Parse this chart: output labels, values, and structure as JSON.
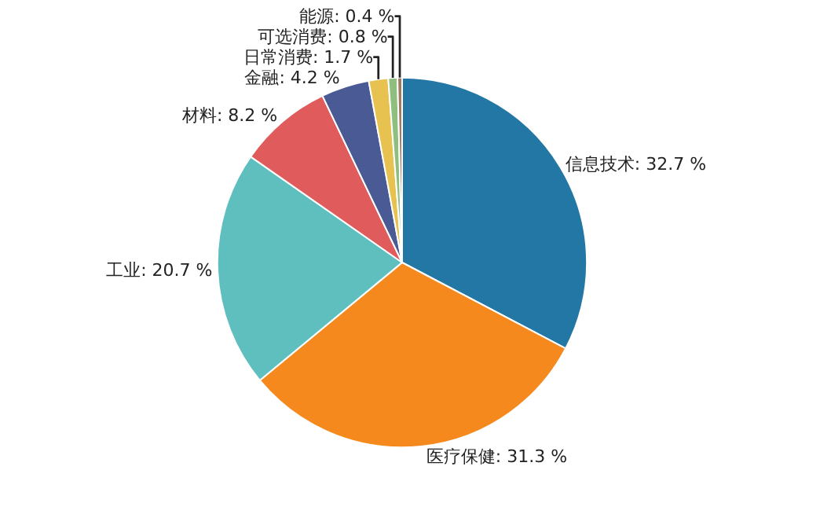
{
  "chart_data": {
    "type": "pie",
    "categories": [
      "信息技术",
      "医疗保健",
      "工业",
      "材料",
      "金融",
      "日常消费",
      "可选消费",
      "能源"
    ],
    "values": [
      32.7,
      31.3,
      20.7,
      8.2,
      4.2,
      1.7,
      0.8,
      0.4
    ],
    "value_labels": [
      "32.7 %",
      "31.3 %",
      "20.7 %",
      "8.2 %",
      "4.2 %",
      "1.7 %",
      "0.8 %",
      "0.4 %"
    ],
    "colors": [
      "#2277a4",
      "#f5891e",
      "#5fbfbf",
      "#e05c5c",
      "#4a5a94",
      "#e8c251",
      "#8fbf7f",
      "#a0785a"
    ],
    "legend": false
  }
}
